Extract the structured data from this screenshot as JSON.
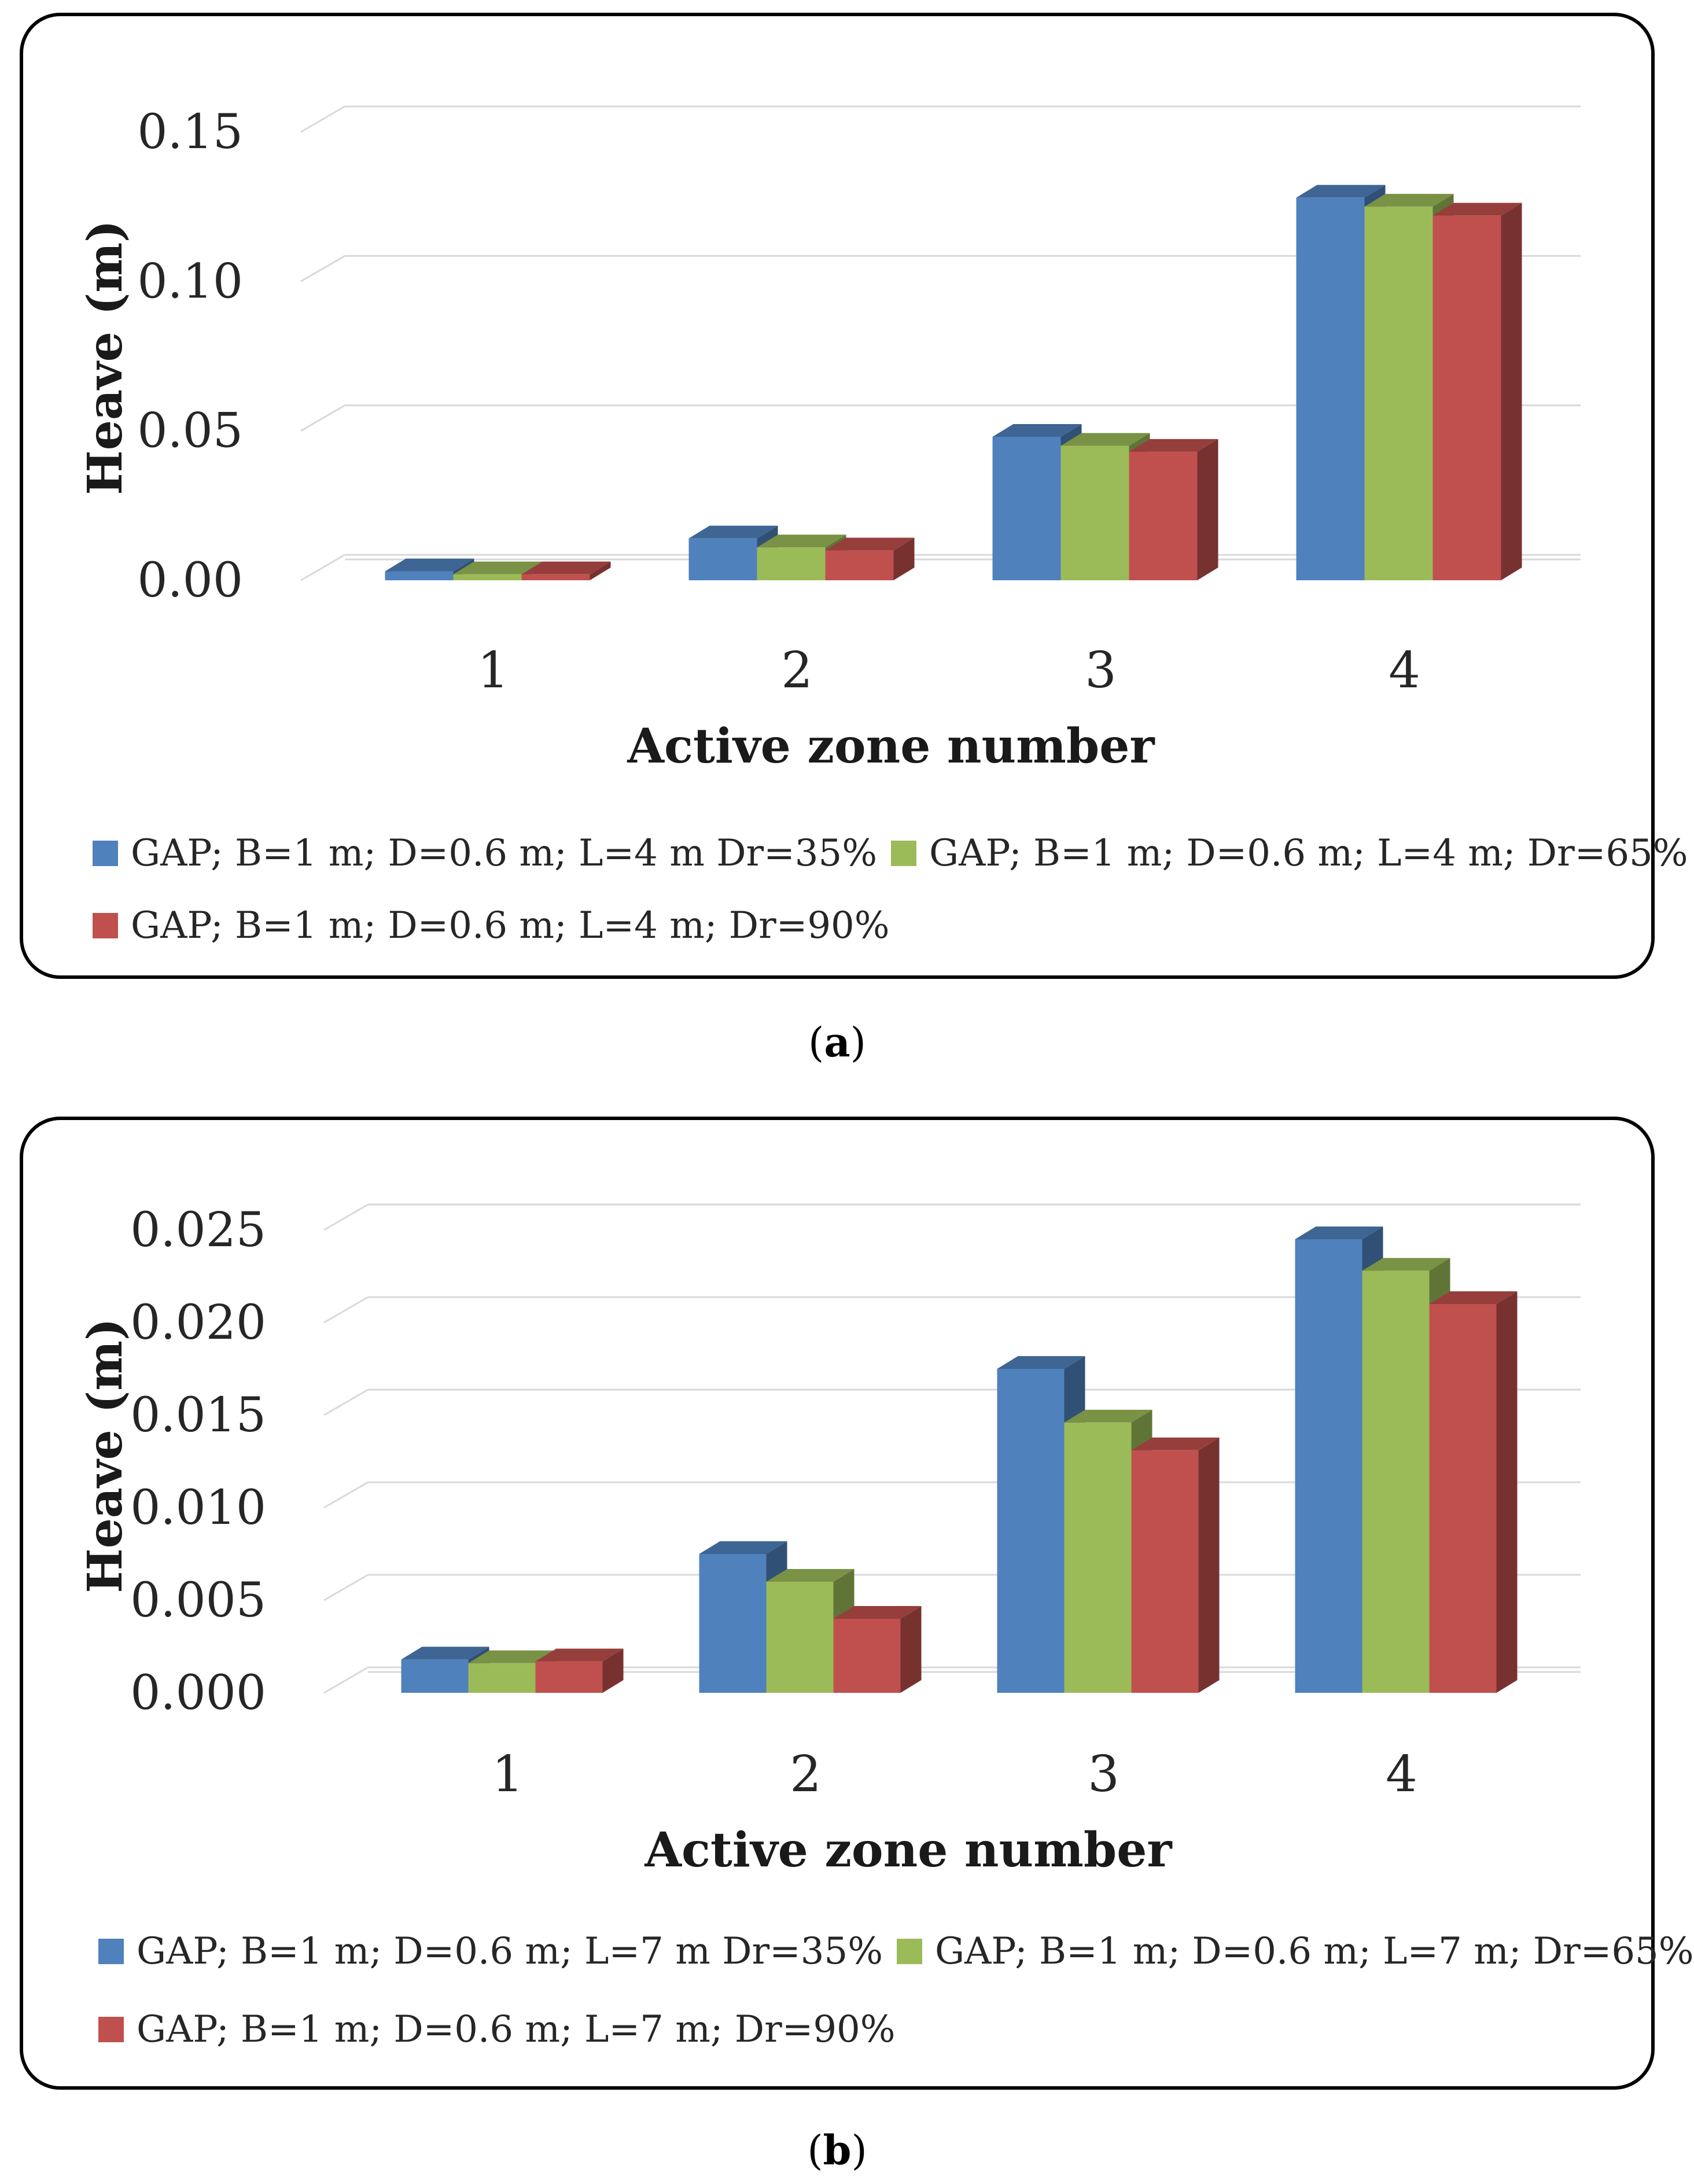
{
  "chart_data": [
    {
      "type": "bar",
      "panel": "a",
      "title": "",
      "xlabel": "Active zone number",
      "ylabel": "Heave (m)",
      "categories": [
        "1",
        "2",
        "3",
        "4"
      ],
      "ylim": [
        0,
        0.15
      ],
      "yticks": [
        "0.00",
        "0.05",
        "0.10",
        "0.15"
      ],
      "grid": true,
      "series": [
        {
          "name": "GAP; B=1 m; D=0.6 m; L=4 m Dr=35%",
          "color": "#4F81BD",
          "values": [
            0.003,
            0.014,
            0.048,
            0.128
          ]
        },
        {
          "name": "GAP; B=1 m; D=0.6 m; L=4 m; Dr=65%",
          "color": "#9BBB59",
          "values": [
            0.002,
            0.011,
            0.045,
            0.125
          ]
        },
        {
          "name": "GAP; B=1 m; D=0.6 m; L=4 m; Dr=90%",
          "color": "#C0504D",
          "values": [
            0.002,
            0.01,
            0.043,
            0.122
          ]
        }
      ]
    },
    {
      "type": "bar",
      "panel": "b",
      "title": "",
      "xlabel": "Active zone number",
      "ylabel": "Heave (m)",
      "categories": [
        "1",
        "2",
        "3",
        "4"
      ],
      "ylim": [
        0,
        0.025
      ],
      "yticks": [
        "0.000",
        "0.005",
        "0.010",
        "0.015",
        "0.020",
        "0.025"
      ],
      "grid": true,
      "series": [
        {
          "name": "GAP; B=1 m; D=0.6 m; L=7 m Dr=35%",
          "color": "#4F81BD",
          "values": [
            0.0018,
            0.0075,
            0.0175,
            0.0245
          ]
        },
        {
          "name": "GAP; B=1 m; D=0.6 m; L=7 m; Dr=65%",
          "color": "#9BBB59",
          "values": [
            0.0016,
            0.006,
            0.0146,
            0.0228
          ]
        },
        {
          "name": "GAP; B=1 m; D=0.6 m; L=7 m; Dr=90%",
          "color": "#C0504D",
          "values": [
            0.0017,
            0.004,
            0.0131,
            0.021
          ]
        }
      ]
    }
  ],
  "captions": {
    "a": "a",
    "b": "b"
  }
}
